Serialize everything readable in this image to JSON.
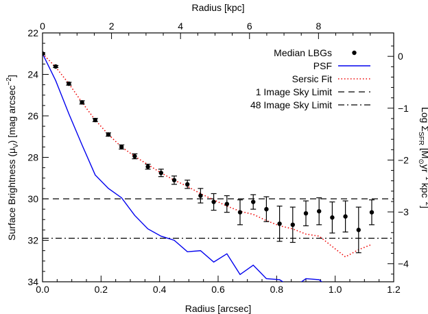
{
  "chart_data": {
    "type": "scatter",
    "title": "",
    "xlabel": "Radius [arcsec]",
    "ylabel": "Surface Brightness (μ_V) [mag arcsec^-2]",
    "top_xlabel": "Radius [kpc]",
    "right_ylabel": "Log Σ_SFR [M_⊙ yr^-1 kpc^-2]",
    "xlim": [
      0.0,
      1.2
    ],
    "ylim": [
      34,
      22
    ],
    "top_xlim": [
      0,
      10.18
    ],
    "right_ylim_note": "right axis offset: log Sigma = (23.13 - mu) / 2.5",
    "x_ticks": [
      "0.0",
      "0.2",
      "0.4",
      "0.6",
      "0.8",
      "1.0",
      "1.2"
    ],
    "y_ticks": [
      "22",
      "24",
      "26",
      "28",
      "30",
      "32",
      "34"
    ],
    "top_ticks": [
      "0",
      "2",
      "4",
      "6",
      "8"
    ],
    "right_ticks": [
      "0",
      "−1",
      "−2",
      "−3",
      "−4"
    ],
    "legend": {
      "placement": "top-right",
      "entries": [
        "Median LBGs",
        "PSF",
        "Sersic Fit",
        "1 Image Sky Limit",
        "48 Image Sky Limit"
      ]
    },
    "series": [
      {
        "name": "Median LBGs",
        "style": "points-with-errorbars",
        "x": [
          0.0,
          0.045,
          0.09,
          0.135,
          0.18,
          0.225,
          0.27,
          0.315,
          0.36,
          0.405,
          0.45,
          0.495,
          0.54,
          0.585,
          0.63,
          0.675,
          0.72,
          0.765,
          0.81,
          0.855,
          0.9,
          0.945,
          0.99,
          1.035,
          1.08,
          1.125
        ],
        "y": [
          23.0,
          23.62,
          24.45,
          25.35,
          26.2,
          26.9,
          27.5,
          27.95,
          28.45,
          28.75,
          29.1,
          29.3,
          29.85,
          30.15,
          30.25,
          30.65,
          30.15,
          30.5,
          31.2,
          31.25,
          30.7,
          30.6,
          30.9,
          30.85,
          31.5,
          30.65
        ],
        "yerr": [
          0.05,
          0.05,
          0.07,
          0.08,
          0.08,
          0.08,
          0.1,
          0.12,
          0.12,
          0.18,
          0.2,
          0.2,
          0.35,
          0.4,
          0.4,
          0.6,
          0.35,
          0.6,
          0.85,
          0.85,
          0.6,
          0.65,
          0.75,
          0.75,
          1.1,
          0.6
        ]
      },
      {
        "name": "PSF",
        "style": "line",
        "color": "#0000ee",
        "x": [
          0.0,
          0.045,
          0.09,
          0.135,
          0.18,
          0.225,
          0.27,
          0.315,
          0.36,
          0.405,
          0.45,
          0.495,
          0.54,
          0.585,
          0.63,
          0.675,
          0.72,
          0.765,
          0.81,
          0.855,
          0.9,
          0.945,
          0.99,
          1.035,
          1.08,
          1.125
        ],
        "y": [
          23.0,
          24.3,
          25.9,
          27.4,
          28.85,
          29.5,
          29.95,
          30.8,
          31.45,
          31.8,
          32.0,
          32.55,
          32.5,
          33.05,
          32.65,
          33.65,
          33.2,
          33.85,
          33.9,
          34.3,
          33.85,
          33.9,
          34.4,
          34.7,
          35.1,
          35.3
        ]
      },
      {
        "name": "Sersic Fit",
        "style": "dotted-line",
        "color": "#ee0000",
        "x": [
          0.0,
          0.045,
          0.09,
          0.135,
          0.18,
          0.225,
          0.27,
          0.315,
          0.36,
          0.405,
          0.45,
          0.495,
          0.54,
          0.585,
          0.63,
          0.675,
          0.72,
          0.765,
          0.81,
          0.855,
          0.9,
          0.945,
          0.99,
          1.035,
          1.08,
          1.125
        ],
        "y": [
          23.0,
          23.65,
          24.45,
          25.35,
          26.2,
          26.9,
          27.5,
          27.95,
          28.35,
          28.75,
          29.1,
          29.4,
          29.75,
          30.05,
          30.35,
          30.6,
          30.75,
          31.05,
          31.3,
          31.45,
          31.7,
          31.8,
          32.3,
          32.8,
          32.45,
          32.2
        ]
      },
      {
        "name": "1 Image Sky Limit",
        "style": "dashed-hline",
        "y": 30.0
      },
      {
        "name": "48 Image Sky Limit",
        "style": "dashdot-hline",
        "y": 31.9
      }
    ]
  }
}
